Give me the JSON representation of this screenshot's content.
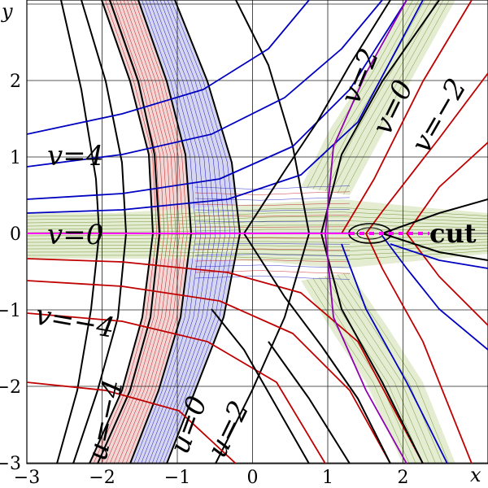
{
  "axes": {
    "x_name": "x",
    "y_name": "y",
    "x_range": [
      -3,
      3
    ],
    "y_range": [
      -3,
      3
    ],
    "x_ticks": [
      {
        "v": -3,
        "label": "−3"
      },
      {
        "v": -2,
        "label": "−2"
      },
      {
        "v": -1,
        "label": "−1"
      },
      {
        "v": 0,
        "label": "0"
      },
      {
        "v": 1,
        "label": "1"
      },
      {
        "v": 2,
        "label": "2"
      }
    ],
    "y_ticks": [
      {
        "v": 2,
        "label": "2"
      },
      {
        "v": 1,
        "label": "1"
      },
      {
        "v": 0,
        "label": "0"
      },
      {
        "v": -1,
        "label": "−1"
      },
      {
        "v": -2,
        "label": "−2"
      },
      {
        "v": -3,
        "label": "−3"
      }
    ],
    "grid": true
  },
  "labels": {
    "v4": "v=4",
    "v0_left": "v=0",
    "vm4": "v=−4",
    "v2": "v=2",
    "v0_right": "v=0",
    "vm2": "v=−2",
    "um4": "u=−4",
    "u0": "u=0",
    "u2": "u=2",
    "cut": "cut"
  },
  "colors": {
    "red": "#c00000",
    "blue": "#0000c0",
    "green": "#6a8f2a",
    "purple": "#9000b0",
    "magenta": "#ff00ff",
    "black": "#000000",
    "band_red": "#f2d6d6",
    "band_blue": "#d6d6f0",
    "band_green": "#e4ecd2"
  }
}
